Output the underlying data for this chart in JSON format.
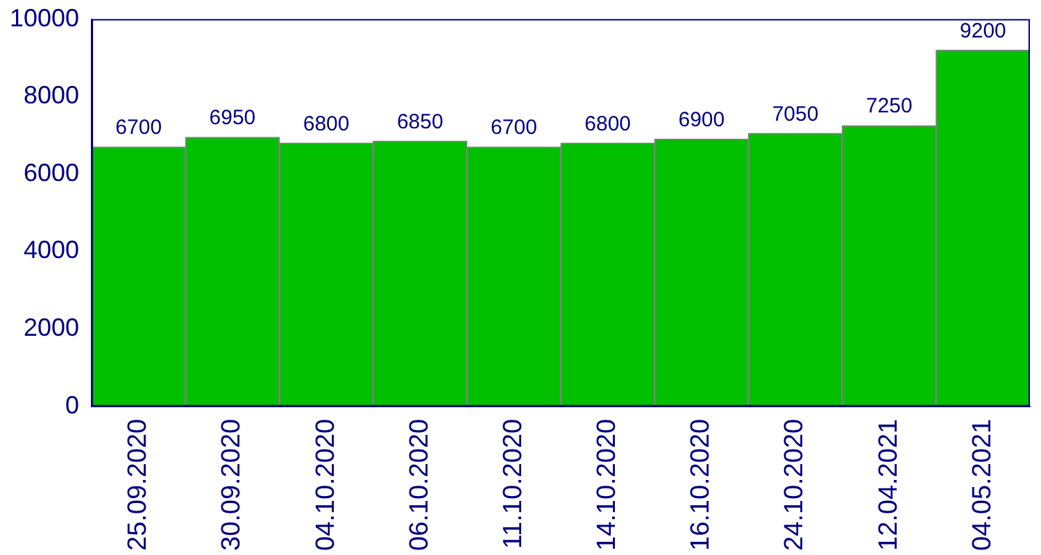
{
  "chart_data": {
    "type": "bar",
    "categories": [
      "25.09.2020",
      "30.09.2020",
      "04.10.2020",
      "06.10.2020",
      "11.10.2020",
      "14.10.2020",
      "16.10.2020",
      "24.10.2020",
      "12.04.2021",
      "04.05.2021"
    ],
    "values": [
      6700,
      6950,
      6800,
      6850,
      6700,
      6800,
      6900,
      7050,
      7250,
      9200
    ],
    "color": "#00c000",
    "ylim": [
      0,
      10000
    ],
    "yticks": [
      0,
      2000,
      4000,
      6000,
      8000,
      10000
    ],
    "grid": false,
    "legend": false,
    "data_labels": true
  }
}
